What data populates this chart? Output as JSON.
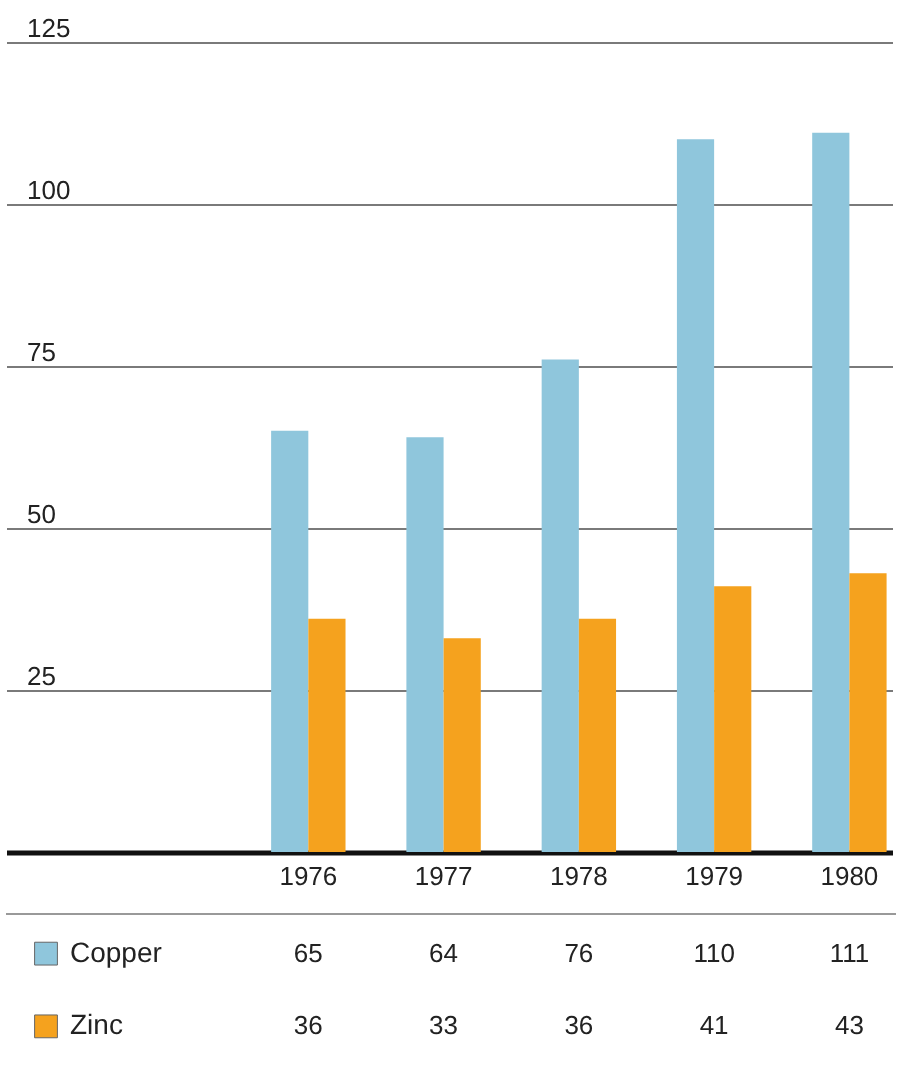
{
  "chart_data": {
    "type": "bar",
    "categories": [
      "1976",
      "1977",
      "1978",
      "1979",
      "1980"
    ],
    "series": [
      {
        "name": "Copper",
        "color": "#8fc6dc",
        "values": [
          65,
          64,
          76,
          110,
          111
        ]
      },
      {
        "name": "Zinc",
        "color": "#f5a21e",
        "values": [
          36,
          33,
          36,
          41,
          43
        ]
      }
    ],
    "ylim": [
      0,
      125
    ],
    "yticks": [
      25,
      50,
      75,
      100,
      125
    ],
    "grid": "y",
    "legend": "bottom",
    "data_labels": true
  }
}
